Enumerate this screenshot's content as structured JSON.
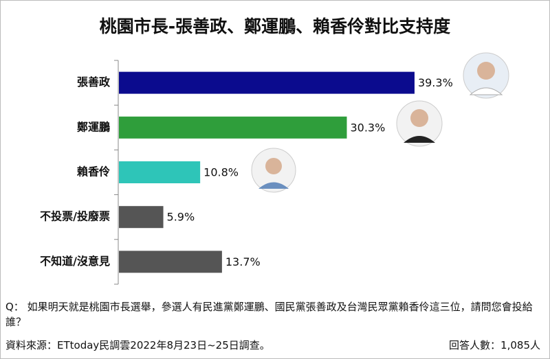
{
  "chart_data": {
    "type": "barh",
    "title": "桃園市長-張善政、鄭運鵬、賴香伶對比支持度",
    "categories": [
      "張善政",
      "鄭運鵬",
      "賴香伶",
      "不投票/投廢票",
      "不知道/沒意見"
    ],
    "values": [
      39.3,
      30.3,
      10.8,
      5.9,
      13.7
    ],
    "value_labels": [
      "39.3%",
      "30.3%",
      "10.8%",
      "5.9%",
      "13.7%"
    ],
    "colors": [
      "#0b0b8e",
      "#2f9e3b",
      "#2ec5b8",
      "#555555",
      "#555555"
    ]
  },
  "question": "Q： 如果明天就是桃園市長選舉，參選人有民進黨鄭運鵬、國民黨張善政及台灣民眾黨賴香伶這三位，請問您會投給誰？",
  "source": "資料來源：ETtoday民調雲2022年8月23日~25日調查。",
  "respondents": "回答人數：1,085人"
}
